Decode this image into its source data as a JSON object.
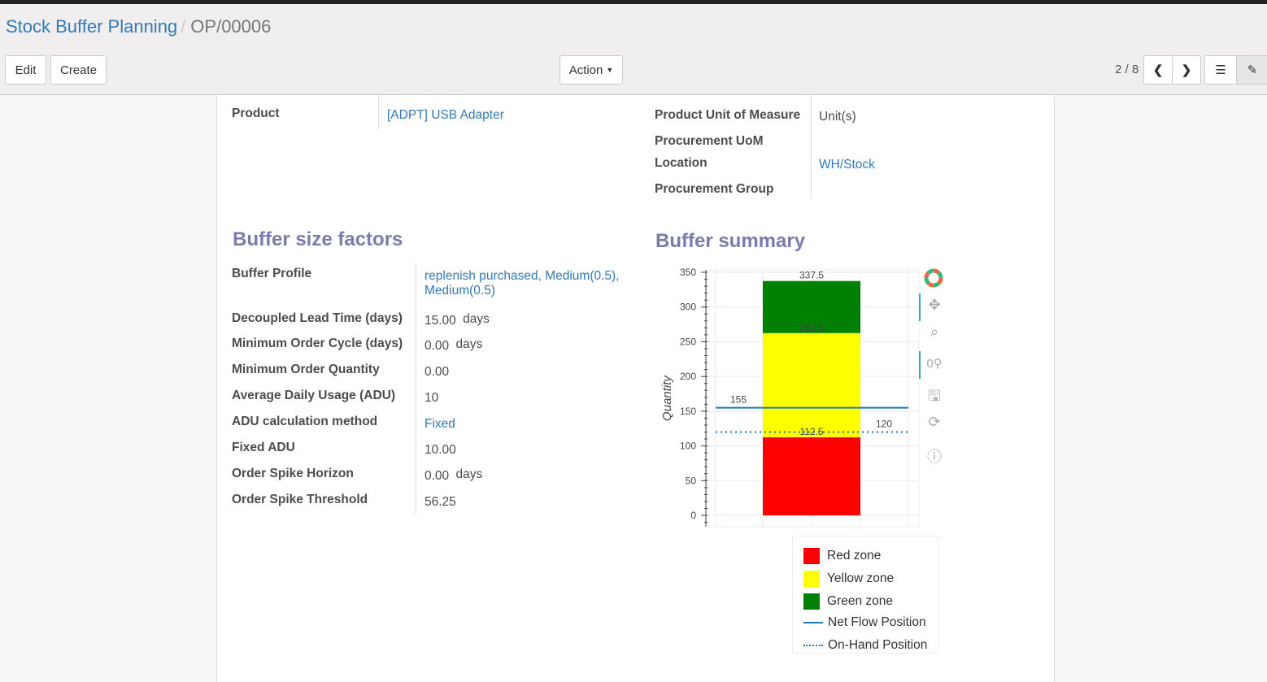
{
  "breadcrumb": {
    "parent": "Stock Buffer Planning",
    "current": "OP/00006"
  },
  "buttons": {
    "edit": "Edit",
    "create": "Create",
    "action": "Action"
  },
  "pager": {
    "text": "2 / 8"
  },
  "top_fields": {
    "product_label": "Product",
    "product_value": "[ADPT] USB Adapter",
    "uom_label": "Product Unit of Measure",
    "uom_value": "Unit(s)",
    "proc_uom_label": "Procurement UoM",
    "location_label": "Location",
    "location_value": "WH/Stock",
    "proc_group_label": "Procurement Group"
  },
  "factors": {
    "title": "Buffer size factors",
    "rows": [
      {
        "label": "Buffer Profile",
        "value": "replenish purchased, Medium(0.5),",
        "value2": "Medium(0.5)",
        "unit": ""
      },
      {
        "label": "Decoupled Lead Time (days)",
        "value": "15.00",
        "unit": "days"
      },
      {
        "label": "Minimum Order Cycle (days)",
        "value": "0.00",
        "unit": "days"
      },
      {
        "label": "Minimum Order Quantity",
        "value": "0.00",
        "unit": ""
      },
      {
        "label": "Average Daily Usage (ADU)",
        "value": "10",
        "unit": ""
      },
      {
        "label": "ADU calculation method",
        "value": "Fixed",
        "unit": ""
      },
      {
        "label": "Fixed ADU",
        "value": "10.00",
        "unit": ""
      },
      {
        "label": "Order Spike Horizon",
        "value": "0.00",
        "unit": "days"
      },
      {
        "label": "Order Spike Threshold",
        "value": "56.25",
        "unit": ""
      }
    ]
  },
  "summary": {
    "title": "Buffer summary"
  },
  "chart_data": {
    "type": "bar",
    "ylabel": "Quantity",
    "ylim": [
      0,
      350
    ],
    "yticks": [
      "0",
      "50",
      "100",
      "150",
      "200",
      "250",
      "300",
      "350"
    ],
    "stack": [
      {
        "name": "Red zone",
        "from": 0,
        "to": 112.5,
        "color": "#ff0000"
      },
      {
        "name": "Yellow zone",
        "from": 112.5,
        "to": 262.5,
        "color": "#ffff00"
      },
      {
        "name": "Green zone",
        "from": 262.5,
        "to": 337.5,
        "color": "#008000"
      }
    ],
    "bar_labels": [
      "112.5",
      "262.5",
      "337.5"
    ],
    "lines": [
      {
        "name": "Net Flow Position",
        "value": 155,
        "label": "155",
        "style": "solid",
        "color": "#1f77b4"
      },
      {
        "name": "On-Hand Position",
        "value": 120,
        "label": "120",
        "style": "dotted",
        "color": "#1f77b4"
      }
    ],
    "grid": true,
    "legend": "bottom"
  }
}
